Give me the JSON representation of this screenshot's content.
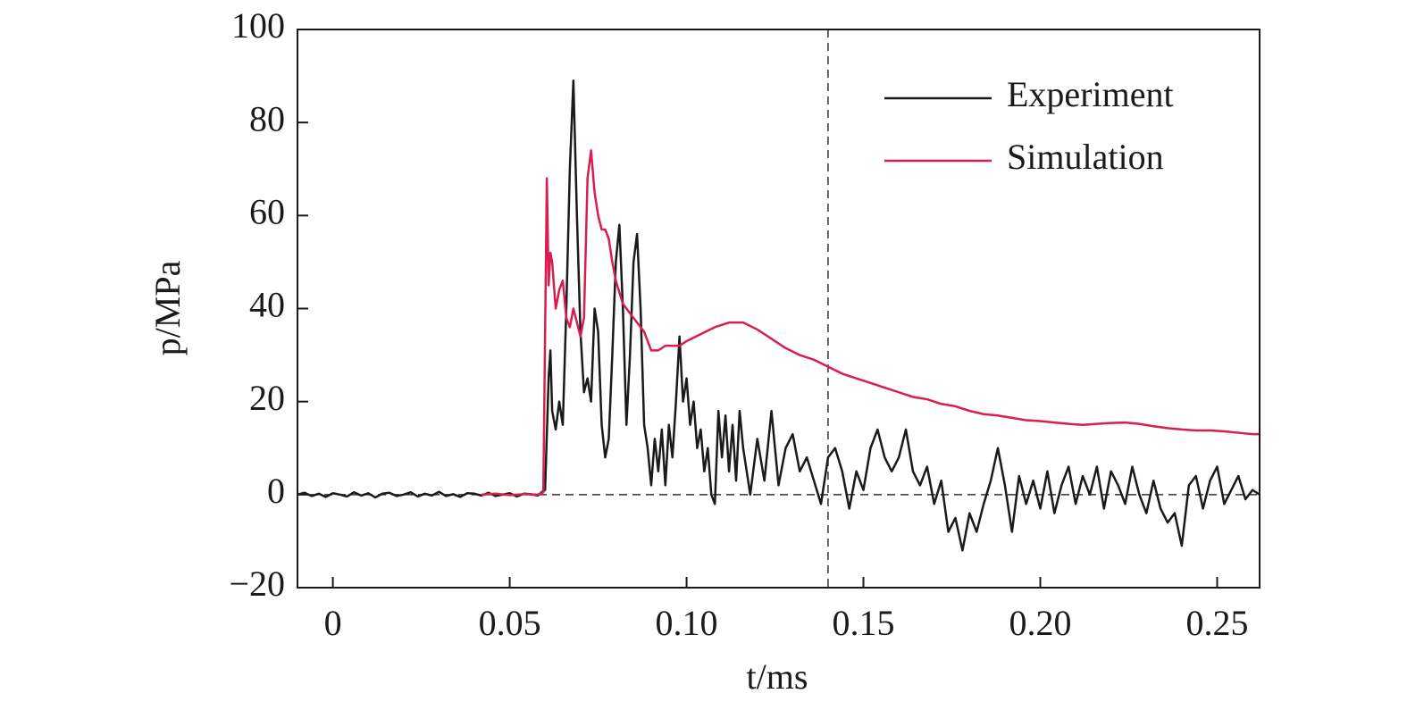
{
  "chart_data": {
    "type": "line",
    "xlabel": "t/ms",
    "ylabel": "p/MPa",
    "xlim": [
      -0.01,
      0.262
    ],
    "ylim": [
      -20,
      100
    ],
    "xticks": [
      0,
      0.05,
      {
        "value": 0.1,
        "label": "0.10"
      },
      0.15,
      {
        "value": 0.2,
        "label": "0.20"
      },
      0.25
    ],
    "yticks": [
      {
        "value": -20,
        "label": "−20"
      },
      0,
      20,
      40,
      60,
      80,
      100
    ],
    "vline": 0.14,
    "hline": 0,
    "legend": "upper right",
    "series": [
      {
        "name": "Experiment",
        "color": "#1a1a1a",
        "x": [
          -0.01,
          -0.008,
          -0.006,
          -0.004,
          -0.002,
          0,
          0.002,
          0.004,
          0.006,
          0.008,
          0.01,
          0.012,
          0.014,
          0.016,
          0.018,
          0.02,
          0.022,
          0.024,
          0.026,
          0.028,
          0.03,
          0.032,
          0.034,
          0.036,
          0.038,
          0.04,
          0.042,
          0.044,
          0.046,
          0.048,
          0.05,
          0.052,
          0.054,
          0.056,
          0.058,
          0.059,
          0.06,
          0.061,
          0.0615,
          0.062,
          0.063,
          0.064,
          0.065,
          0.066,
          0.067,
          0.068,
          0.069,
          0.07,
          0.071,
          0.072,
          0.073,
          0.074,
          0.075,
          0.0755,
          0.076,
          0.077,
          0.078,
          0.079,
          0.08,
          0.081,
          0.082,
          0.083,
          0.084,
          0.085,
          0.086,
          0.087,
          0.088,
          0.089,
          0.09,
          0.091,
          0.092,
          0.093,
          0.094,
          0.095,
          0.096,
          0.097,
          0.098,
          0.099,
          0.1,
          0.101,
          0.102,
          0.103,
          0.104,
          0.105,
          0.106,
          0.107,
          0.108,
          0.109,
          0.11,
          0.111,
          0.112,
          0.113,
          0.114,
          0.115,
          0.116,
          0.118,
          0.12,
          0.122,
          0.124,
          0.126,
          0.128,
          0.13,
          0.132,
          0.134,
          0.136,
          0.138,
          0.14,
          0.142,
          0.144,
          0.146,
          0.148,
          0.15,
          0.152,
          0.154,
          0.156,
          0.158,
          0.16,
          0.162,
          0.164,
          0.166,
          0.168,
          0.17,
          0.172,
          0.174,
          0.176,
          0.178,
          0.18,
          0.182,
          0.184,
          0.186,
          0.188,
          0.19,
          0.192,
          0.194,
          0.196,
          0.198,
          0.2,
          0.202,
          0.204,
          0.206,
          0.208,
          0.21,
          0.212,
          0.214,
          0.216,
          0.218,
          0.22,
          0.222,
          0.224,
          0.226,
          0.228,
          0.23,
          0.232,
          0.234,
          0.236,
          0.238,
          0.24,
          0.242,
          0.244,
          0.246,
          0.248,
          0.25,
          0.252,
          0.254,
          0.256,
          0.258,
          0.26,
          0.262
        ],
        "values": [
          0,
          0.4,
          -0.3,
          0.2,
          -0.5,
          0.3,
          0,
          -0.4,
          0.5,
          -0.2,
          0.3,
          -0.6,
          0.2,
          0.4,
          -0.3,
          0,
          0.5,
          -0.4,
          0.2,
          -0.2,
          0.6,
          -0.3,
          0.1,
          -0.5,
          0.3,
          0.2,
          -0.2,
          0.4,
          -0.3,
          0,
          0.3,
          -0.4,
          0.2,
          0.1,
          -0.2,
          0.5,
          1,
          25,
          31,
          18,
          14,
          20,
          15,
          40,
          70,
          89,
          60,
          35,
          22,
          25,
          20,
          40,
          35,
          25,
          15,
          8,
          12,
          30,
          50,
          58,
          40,
          15,
          30,
          50,
          56,
          40,
          15,
          10,
          2,
          12,
          5,
          14,
          2,
          15,
          8,
          20,
          34,
          20,
          25,
          15,
          20,
          10,
          14,
          5,
          10,
          0,
          -2,
          18,
          8,
          17,
          5,
          15,
          3,
          18,
          10,
          0,
          12,
          3,
          18,
          2,
          10,
          13,
          5,
          8,
          3,
          -2,
          8,
          10,
          5,
          -3,
          5,
          1,
          10,
          14,
          8,
          5,
          8,
          14,
          5,
          2,
          6,
          -2,
          3,
          -8,
          -5,
          -12,
          -4,
          -8,
          -2,
          3,
          10,
          2,
          -8,
          4,
          -2,
          3,
          -3,
          5,
          -4,
          2,
          6,
          -2,
          4,
          0,
          6,
          -3,
          5,
          2,
          -2,
          6,
          0,
          -4,
          3,
          -3,
          -6,
          -4,
          -11,
          2,
          4,
          -3,
          3,
          6,
          -2,
          1,
          4,
          -1,
          1,
          0
        ]
      },
      {
        "name": "Simulation",
        "color": "#d81e50",
        "x": [
          0.042,
          0.046,
          0.05,
          0.054,
          0.058,
          0.0595,
          0.0605,
          0.061,
          0.0615,
          0.062,
          0.063,
          0.064,
          0.065,
          0.066,
          0.067,
          0.068,
          0.069,
          0.07,
          0.071,
          0.072,
          0.073,
          0.074,
          0.075,
          0.076,
          0.077,
          0.078,
          0.079,
          0.08,
          0.082,
          0.084,
          0.086,
          0.088,
          0.09,
          0.092,
          0.094,
          0.096,
          0.098,
          0.1,
          0.104,
          0.108,
          0.112,
          0.116,
          0.12,
          0.124,
          0.128,
          0.132,
          0.136,
          0.14,
          0.144,
          0.148,
          0.152,
          0.156,
          0.16,
          0.164,
          0.168,
          0.172,
          0.176,
          0.18,
          0.184,
          0.188,
          0.192,
          0.196,
          0.2,
          0.204,
          0.208,
          0.212,
          0.216,
          0.22,
          0.224,
          0.228,
          0.232,
          0.236,
          0.24,
          0.244,
          0.248,
          0.252,
          0.256,
          0.26,
          0.262
        ],
        "values": [
          0,
          0.2,
          -0.1,
          0.1,
          0,
          0.5,
          68,
          45,
          52,
          50,
          40,
          44,
          46,
          38,
          36,
          40,
          37,
          34,
          38,
          68,
          74,
          65,
          60,
          57,
          57,
          55,
          50,
          46,
          41,
          39,
          37,
          35,
          31,
          31,
          32,
          32,
          32,
          33,
          34.5,
          36,
          37,
          37,
          35.5,
          33.5,
          31.5,
          30,
          29,
          27.5,
          26,
          25,
          24,
          23,
          22,
          21,
          20.5,
          19.5,
          19,
          18,
          17.3,
          17,
          16.5,
          16,
          15.8,
          15.5,
          15.2,
          15,
          15.2,
          15.4,
          15.5,
          15.2,
          14.7,
          14.3,
          14,
          13.8,
          13.8,
          13.6,
          13.3,
          13,
          13
        ]
      }
    ]
  }
}
